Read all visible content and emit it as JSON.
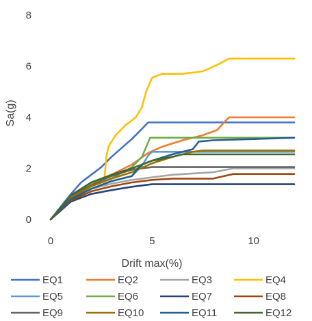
{
  "chart_data": {
    "type": "line",
    "title": "",
    "xlabel": "Drift max(%)",
    "ylabel": "Sa(g)",
    "xlim": [
      0,
      12
    ],
    "ylim": [
      0,
      8
    ],
    "xticks": [
      0,
      5,
      10
    ],
    "yticks": [
      0,
      2,
      4,
      6,
      8
    ],
    "grid": false,
    "legend_position": "bottom",
    "series": [
      {
        "name": "EQ1",
        "color": "#4472C4",
        "points": [
          [
            0,
            0
          ],
          [
            0.5,
            0.5
          ],
          [
            1.0,
            1.0
          ],
          [
            1.5,
            1.45
          ],
          [
            2.0,
            1.75
          ],
          [
            2.5,
            2.05
          ],
          [
            3.0,
            2.45
          ],
          [
            3.5,
            2.8
          ],
          [
            4.0,
            3.15
          ],
          [
            4.5,
            3.55
          ],
          [
            4.8,
            3.8
          ],
          [
            12,
            3.8
          ]
        ]
      },
      {
        "name": "EQ2",
        "color": "#ED7D31",
        "points": [
          [
            0,
            0
          ],
          [
            1.0,
            0.9
          ],
          [
            2.0,
            1.4
          ],
          [
            3.0,
            1.75
          ],
          [
            4.0,
            2.15
          ],
          [
            4.8,
            2.6
          ],
          [
            5.5,
            2.85
          ],
          [
            6.5,
            3.1
          ],
          [
            7.5,
            3.3
          ],
          [
            8.2,
            3.5
          ],
          [
            8.6,
            3.85
          ],
          [
            8.8,
            4.0
          ],
          [
            12,
            4.0
          ]
        ]
      },
      {
        "name": "EQ3",
        "color": "#A5A5A5",
        "points": [
          [
            0,
            0
          ],
          [
            1.0,
            0.8
          ],
          [
            2.0,
            1.2
          ],
          [
            3.0,
            1.4
          ],
          [
            4.0,
            1.55
          ],
          [
            5.0,
            1.65
          ],
          [
            6.0,
            1.75
          ],
          [
            8.0,
            1.85
          ],
          [
            9.0,
            2.0
          ],
          [
            12,
            2.0
          ]
        ]
      },
      {
        "name": "EQ4",
        "color": "#FFC000",
        "points": [
          [
            0,
            0
          ],
          [
            1.0,
            0.9
          ],
          [
            2.0,
            1.4
          ],
          [
            2.65,
            1.6
          ],
          [
            2.75,
            2.5
          ],
          [
            2.85,
            2.85
          ],
          [
            3.2,
            3.3
          ],
          [
            3.7,
            3.7
          ],
          [
            4.2,
            4.0
          ],
          [
            4.5,
            4.4
          ],
          [
            4.7,
            5.0
          ],
          [
            5.0,
            5.55
          ],
          [
            5.5,
            5.7
          ],
          [
            6.5,
            5.7
          ],
          [
            7.5,
            5.8
          ],
          [
            8.2,
            6.05
          ],
          [
            8.8,
            6.3
          ],
          [
            12,
            6.3
          ]
        ]
      },
      {
        "name": "EQ5",
        "color": "#5B9BD5",
        "points": [
          [
            0,
            0
          ],
          [
            1.0,
            0.8
          ],
          [
            2.0,
            1.2
          ],
          [
            3.0,
            1.5
          ],
          [
            4.0,
            1.7
          ],
          [
            4.5,
            2.1
          ],
          [
            4.8,
            2.5
          ],
          [
            5.0,
            2.65
          ],
          [
            12,
            2.65
          ]
        ]
      },
      {
        "name": "EQ6",
        "color": "#70AD47",
        "points": [
          [
            0,
            0
          ],
          [
            1.0,
            0.85
          ],
          [
            2.0,
            1.3
          ],
          [
            3.0,
            1.6
          ],
          [
            4.0,
            2.05
          ],
          [
            4.5,
            2.45
          ],
          [
            4.9,
            3.2
          ],
          [
            12,
            3.2
          ]
        ]
      },
      {
        "name": "EQ7",
        "color": "#264478",
        "points": [
          [
            0,
            0
          ],
          [
            1.0,
            0.7
          ],
          [
            1.5,
            0.85
          ],
          [
            2.0,
            1.0
          ],
          [
            3.0,
            1.15
          ],
          [
            4.0,
            1.28
          ],
          [
            5.0,
            1.38
          ],
          [
            6.0,
            1.38
          ],
          [
            12,
            1.38
          ]
        ]
      },
      {
        "name": "EQ8",
        "color": "#9E480E",
        "points": [
          [
            0,
            0
          ],
          [
            1.0,
            0.75
          ],
          [
            2.0,
            1.1
          ],
          [
            3.0,
            1.3
          ],
          [
            4.0,
            1.45
          ],
          [
            5.0,
            1.55
          ],
          [
            6.0,
            1.6
          ],
          [
            8.0,
            1.6
          ],
          [
            9.0,
            1.78
          ],
          [
            12,
            1.78
          ]
        ]
      },
      {
        "name": "EQ9",
        "color": "#636363",
        "points": [
          [
            0,
            0
          ],
          [
            1.0,
            0.9
          ],
          [
            2.0,
            1.35
          ],
          [
            3.0,
            1.7
          ],
          [
            4.0,
            1.95
          ],
          [
            5.0,
            2.05
          ],
          [
            12,
            2.05
          ]
        ]
      },
      {
        "name": "EQ10",
        "color": "#997300",
        "points": [
          [
            0,
            0
          ],
          [
            1.0,
            0.85
          ],
          [
            2.0,
            1.3
          ],
          [
            3.0,
            1.6
          ],
          [
            4.0,
            1.85
          ],
          [
            5.0,
            2.2
          ],
          [
            6.0,
            2.45
          ],
          [
            7.0,
            2.65
          ],
          [
            7.5,
            2.7
          ],
          [
            12,
            2.7
          ]
        ]
      },
      {
        "name": "EQ11",
        "color": "#255E91",
        "points": [
          [
            0,
            0
          ],
          [
            1.0,
            0.8
          ],
          [
            2.0,
            1.2
          ],
          [
            3.0,
            1.5
          ],
          [
            4.0,
            1.7
          ],
          [
            4.3,
            2.0
          ],
          [
            4.5,
            2.15
          ],
          [
            5.0,
            2.3
          ],
          [
            6.0,
            2.55
          ],
          [
            7.0,
            2.75
          ],
          [
            7.3,
            3.05
          ],
          [
            8.0,
            3.1
          ],
          [
            10.0,
            3.15
          ],
          [
            12,
            3.2
          ]
        ]
      },
      {
        "name": "EQ12",
        "color": "#43682B",
        "points": [
          [
            0,
            0
          ],
          [
            1.0,
            0.95
          ],
          [
            2.0,
            1.45
          ],
          [
            3.0,
            1.75
          ],
          [
            4.0,
            2.0
          ],
          [
            5.0,
            2.3
          ],
          [
            6.0,
            2.45
          ],
          [
            6.5,
            2.55
          ],
          [
            12,
            2.55
          ]
        ]
      }
    ]
  }
}
